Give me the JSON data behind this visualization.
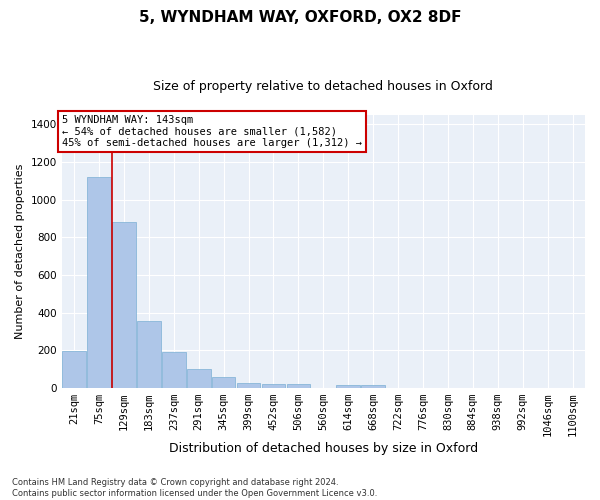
{
  "title1": "5, WYNDHAM WAY, OXFORD, OX2 8DF",
  "title2": "Size of property relative to detached houses in Oxford",
  "xlabel": "Distribution of detached houses by size in Oxford",
  "ylabel": "Number of detached properties",
  "categories": [
    "21sqm",
    "75sqm",
    "129sqm",
    "183sqm",
    "237sqm",
    "291sqm",
    "345sqm",
    "399sqm",
    "452sqm",
    "506sqm",
    "560sqm",
    "614sqm",
    "668sqm",
    "722sqm",
    "776sqm",
    "830sqm",
    "884sqm",
    "938sqm",
    "992sqm",
    "1046sqm",
    "1100sqm"
  ],
  "values": [
    197,
    1120,
    880,
    355,
    193,
    98,
    55,
    25,
    22,
    18,
    0,
    15,
    15,
    0,
    0,
    0,
    0,
    0,
    0,
    0,
    0
  ],
  "bar_color": "#aec6e8",
  "bar_edgecolor": "#7bafd4",
  "vline_color": "#cc0000",
  "vline_x": 1.5,
  "annotation_text": "5 WYNDHAM WAY: 143sqm\n← 54% of detached houses are smaller (1,582)\n45% of semi-detached houses are larger (1,312) →",
  "annotation_box_color": "#ffffff",
  "annotation_box_edgecolor": "#cc0000",
  "ylim": [
    0,
    1450
  ],
  "yticks": [
    0,
    200,
    400,
    600,
    800,
    1000,
    1200,
    1400
  ],
  "bg_color": "#eaf0f8",
  "footnote": "Contains HM Land Registry data © Crown copyright and database right 2024.\nContains public sector information licensed under the Open Government Licence v3.0.",
  "title1_fontsize": 11,
  "title2_fontsize": 9,
  "xlabel_fontsize": 9,
  "ylabel_fontsize": 8,
  "tick_fontsize": 7.5,
  "annot_fontsize": 7.5,
  "footnote_fontsize": 6
}
